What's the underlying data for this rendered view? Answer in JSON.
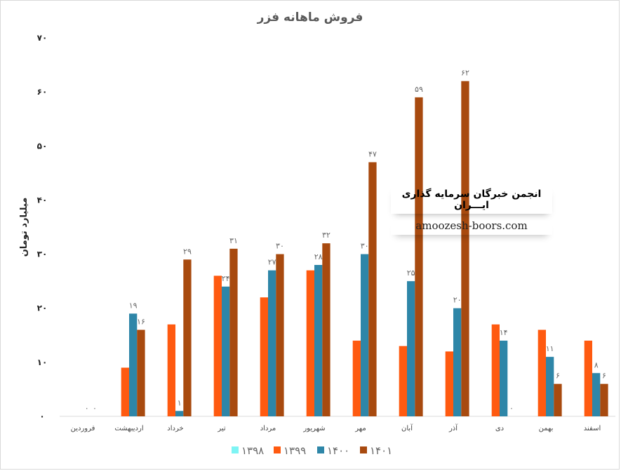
{
  "chart_data": {
    "type": "bar",
    "title": "فروش ماهانه فزر",
    "ylabel": "میلیارد تومان",
    "xlabel": "",
    "ylim": [
      0,
      70
    ],
    "yticks": [
      0,
      10,
      20,
      30,
      40,
      50,
      60,
      70
    ],
    "ytick_labels": [
      "۰",
      "۱۰",
      "۲۰",
      "۳۰",
      "۴۰",
      "۵۰",
      "۶۰",
      "۷۰"
    ],
    "grid": false,
    "legend_position": "bottom",
    "categories": [
      "فروردین",
      "اردیبهشت",
      "خرداد",
      "تیر",
      "مرداد",
      "شهریور",
      "مهر",
      "آبان",
      "آذر",
      "دی",
      "بهمن",
      "اسفند"
    ],
    "series": [
      {
        "name": "۱۳۹۸",
        "color": "#7EF4F4",
        "values": [
          0,
          0,
          0,
          0,
          0,
          0,
          0,
          0,
          0,
          0,
          0,
          0
        ],
        "labels": [
          null,
          null,
          null,
          null,
          null,
          null,
          null,
          null,
          null,
          null,
          null,
          null
        ]
      },
      {
        "name": "۱۳۹۹",
        "color": "#FF5A10",
        "values": [
          0,
          9,
          17,
          26,
          22,
          27,
          14,
          13,
          12,
          17,
          16,
          14
        ],
        "labels": [
          null,
          null,
          null,
          null,
          null,
          null,
          null,
          null,
          null,
          null,
          null,
          null
        ]
      },
      {
        "name": "۱۴۰۰",
        "color": "#2E86A8",
        "values": [
          0,
          19,
          1,
          24,
          27,
          28,
          30,
          25,
          20,
          14,
          11,
          8
        ],
        "labels": [
          "۰",
          "۱۹",
          "۱",
          "۲۴",
          "۲۷",
          "۲۸",
          "۳۰",
          "۲۵",
          "۲۰",
          "۱۴",
          "۱۱",
          "۸"
        ]
      },
      {
        "name": "۱۴۰۱",
        "color": "#A84A0F",
        "values": [
          0,
          16,
          29,
          31,
          30,
          32,
          47,
          59,
          62,
          0,
          6,
          6
        ],
        "labels": [
          "۰",
          "۱۶",
          "۲۹",
          "۳۱",
          "۳۰",
          "۳۲",
          "۴۷",
          "۵۹",
          "۶۲",
          "۰",
          "۶",
          "۶"
        ]
      }
    ]
  },
  "watermark": {
    "line1": "انجمن خبرگان سرمایه گذاری ایـــران",
    "line2": "amoozesh-boors.com"
  }
}
